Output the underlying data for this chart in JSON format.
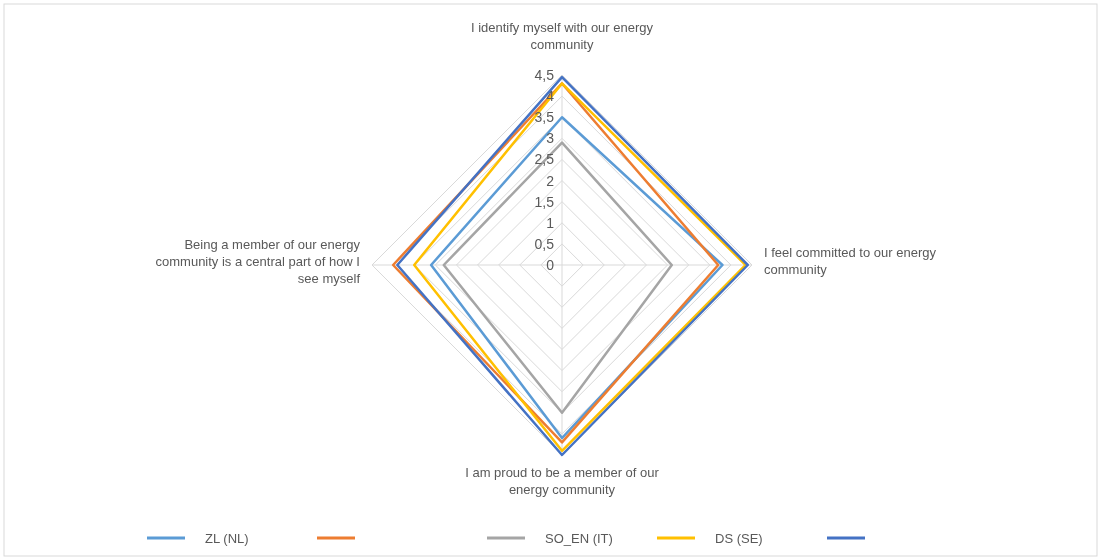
{
  "chart_data": {
    "type": "radar",
    "categories": [
      "I identify myself with our energy community",
      "I feel committed to our energy community",
      "I am proud to be a member of our energy community",
      "Being a member of our energy community is a central part of how I see myself"
    ],
    "ylim": [
      0,
      4.5
    ],
    "yticks": [
      0,
      {
        "value": 0.5,
        "label": "0,5"
      },
      1,
      {
        "value": 1.5,
        "label": "1,5"
      },
      2,
      {
        "value": 2.5,
        "label": "2,5"
      },
      3,
      {
        "value": 3.5,
        "label": "3,5"
      },
      4,
      {
        "value": 4.5,
        "label": "4,5"
      }
    ],
    "grid": true,
    "legend": "bottom",
    "marker": "none",
    "series": [
      {
        "name": "ZL (NL)",
        "color": "#5b9bd5",
        "values": [
          3.5,
          3.8,
          4.1,
          3.1
        ]
      },
      {
        "color": "#ed7d31",
        "values": [
          4.3,
          3.7,
          4.2,
          4.0
        ]
      },
      {
        "name": "SO_EN (IT)",
        "color": "#a5a5a5",
        "values": [
          2.9,
          2.6,
          3.5,
          2.8
        ]
      },
      {
        "name": "DS (SE)",
        "color": "#ffc000",
        "values": [
          4.3,
          4.35,
          4.4,
          3.5
        ]
      },
      {
        "color": "#4472c4",
        "values": [
          4.45,
          4.4,
          4.5,
          3.9
        ]
      }
    ]
  }
}
